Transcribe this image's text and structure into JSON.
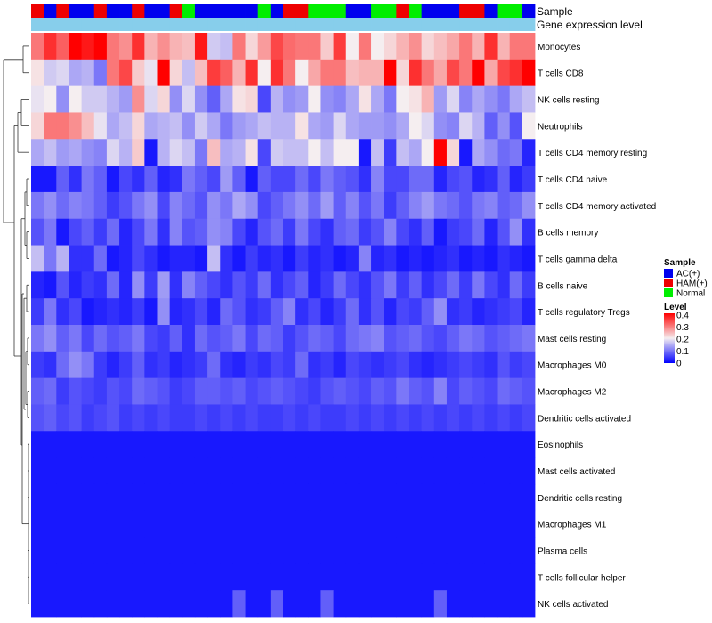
{
  "chart_data": {
    "type": "heatmap",
    "title": "",
    "annotation_labels": [
      "Sample",
      "Gene expression level"
    ],
    "sample_groups": [
      "HAM(+)",
      "AC(+)",
      "HAM(+)",
      "AC(+)",
      "AC(+)",
      "HAM(+)",
      "AC(+)",
      "AC(+)",
      "HAM(+)",
      "AC(+)",
      "AC(+)",
      "HAM(+)",
      "Normal",
      "AC(+)",
      "AC(+)",
      "AC(+)",
      "AC(+)",
      "AC(+)",
      "Normal",
      "AC(+)",
      "HAM(+)",
      "HAM(+)",
      "Normal",
      "Normal",
      "Normal",
      "AC(+)",
      "AC(+)",
      "Normal",
      "Normal",
      "HAM(+)",
      "Normal",
      "AC(+)",
      "AC(+)",
      "AC(+)",
      "HAM(+)",
      "HAM(+)",
      "AC(+)",
      "Normal",
      "Normal",
      "AC(+)"
    ],
    "gene_expression_level": [
      0.2,
      0.2,
      0.2,
      0.2,
      0.2,
      0.2,
      0.2,
      0.2,
      0.2,
      0.2,
      0.2,
      0.2,
      0.2,
      0.2,
      0.2,
      0.2,
      0.2,
      0.2,
      0.2,
      0.2,
      0.2,
      0.2,
      0.2,
      0.2,
      0.2,
      0.2,
      0.2,
      0.2,
      0.2,
      0.2,
      0.2,
      0.2,
      0.2,
      0.2,
      0.2,
      0.2,
      0.2,
      0.2,
      0.2,
      0.2
    ],
    "rows": [
      "Monocytes",
      "T cells CD8",
      "NK cells resting",
      "Neutrophils",
      "T cells CD4 memory resting",
      "T cells CD4 naive",
      "T cells CD4 memory activated",
      "B cells memory",
      "T cells gamma delta",
      "B cells naive",
      "T cells regulatory  Tregs",
      "Mast cells resting",
      "Macrophages M0",
      "Macrophages M2",
      "Dendritic cells activated",
      "Eosinophils",
      "Mast cells activated",
      "Dendritic cells resting",
      "Macrophages M1",
      "Plasma cells",
      "T cells follicular helper",
      "NK cells activated"
    ],
    "values": [
      [
        0.3,
        0.36,
        0.32,
        0.4,
        0.38,
        0.42,
        0.3,
        0.28,
        0.36,
        0.25,
        0.28,
        0.25,
        0.24,
        0.38,
        0.17,
        0.16,
        0.3,
        0.22,
        0.27,
        0.34,
        0.31,
        0.3,
        0.3,
        0.23,
        0.35,
        0.2,
        0.3,
        0.2,
        0.22,
        0.25,
        0.28,
        0.22,
        0.24,
        0.26,
        0.3,
        0.25,
        0.36,
        0.25,
        0.3,
        0.3
      ],
      [
        0.21,
        0.17,
        0.18,
        0.14,
        0.15,
        0.1,
        0.3,
        0.34,
        0.23,
        0.19,
        0.4,
        0.22,
        0.16,
        0.24,
        0.35,
        0.32,
        0.25,
        0.36,
        0.2,
        0.36,
        0.3,
        0.2,
        0.26,
        0.3,
        0.3,
        0.24,
        0.25,
        0.25,
        0.4,
        0.22,
        0.36,
        0.3,
        0.26,
        0.34,
        0.3,
        0.4,
        0.26,
        0.34,
        0.36,
        0.4
      ],
      [
        0.19,
        0.2,
        0.12,
        0.2,
        0.17,
        0.17,
        0.15,
        0.13,
        0.28,
        0.18,
        0.22,
        0.12,
        0.18,
        0.12,
        0.08,
        0.14,
        0.21,
        0.22,
        0.06,
        0.15,
        0.12,
        0.13,
        0.2,
        0.12,
        0.11,
        0.14,
        0.21,
        0.14,
        0.1,
        0.2,
        0.21,
        0.25,
        0.13,
        0.18,
        0.11,
        0.14,
        0.12,
        0.1,
        0.14,
        0.16
      ],
      [
        0.22,
        0.3,
        0.3,
        0.28,
        0.24,
        0.19,
        0.14,
        0.16,
        0.22,
        0.14,
        0.15,
        0.16,
        0.12,
        0.17,
        0.14,
        0.1,
        0.13,
        0.14,
        0.16,
        0.15,
        0.15,
        0.21,
        0.14,
        0.13,
        0.18,
        0.14,
        0.13,
        0.13,
        0.12,
        0.14,
        0.2,
        0.18,
        0.12,
        0.11,
        0.18,
        0.15,
        0.08,
        0.12,
        0.07,
        0.2
      ],
      [
        0.14,
        0.16,
        0.13,
        0.14,
        0.12,
        0.11,
        0.18,
        0.15,
        0.23,
        0.02,
        0.15,
        0.18,
        0.16,
        0.1,
        0.24,
        0.14,
        0.15,
        0.21,
        0.06,
        0.17,
        0.16,
        0.16,
        0.2,
        0.16,
        0.2,
        0.2,
        0.02,
        0.16,
        0.05,
        0.16,
        0.14,
        0.2,
        0.42,
        0.22,
        0.02,
        0.14,
        0.12,
        0.09,
        0.1,
        0.03
      ],
      [
        0.02,
        0.02,
        0.08,
        0.04,
        0.1,
        0.08,
        0.02,
        0.06,
        0.04,
        0.08,
        0.03,
        0.04,
        0.1,
        0.08,
        0.06,
        0.13,
        0.08,
        0.02,
        0.08,
        0.06,
        0.06,
        0.09,
        0.06,
        0.1,
        0.08,
        0.07,
        0.04,
        0.11,
        0.06,
        0.06,
        0.09,
        0.09,
        0.03,
        0.06,
        0.07,
        0.03,
        0.04,
        0.08,
        0.03,
        0.05
      ],
      [
        0.1,
        0.12,
        0.09,
        0.11,
        0.1,
        0.08,
        0.05,
        0.07,
        0.1,
        0.12,
        0.06,
        0.11,
        0.09,
        0.07,
        0.12,
        0.1,
        0.14,
        0.12,
        0.06,
        0.08,
        0.1,
        0.12,
        0.09,
        0.13,
        0.08,
        0.11,
        0.07,
        0.1,
        0.05,
        0.08,
        0.11,
        0.13,
        0.1,
        0.09,
        0.07,
        0.1,
        0.11,
        0.08,
        0.09,
        0.12
      ],
      [
        0.07,
        0.1,
        0.02,
        0.06,
        0.08,
        0.05,
        0.09,
        0.03,
        0.06,
        0.1,
        0.04,
        0.11,
        0.07,
        0.08,
        0.12,
        0.11,
        0.06,
        0.03,
        0.07,
        0.09,
        0.05,
        0.1,
        0.06,
        0.04,
        0.08,
        0.09,
        0.05,
        0.07,
        0.11,
        0.06,
        0.04,
        0.08,
        0.02,
        0.05,
        0.06,
        0.09,
        0.03,
        0.07,
        0.12,
        0.04
      ],
      [
        0.16,
        0.1,
        0.15,
        0.04,
        0.04,
        0.09,
        0.02,
        0.03,
        0.06,
        0.04,
        0.02,
        0.03,
        0.03,
        0.02,
        0.16,
        0.04,
        0.02,
        0.05,
        0.03,
        0.04,
        0.02,
        0.05,
        0.03,
        0.04,
        0.02,
        0.03,
        0.11,
        0.03,
        0.04,
        0.02,
        0.03,
        0.02,
        0.03,
        0.04,
        0.02,
        0.03,
        0.02,
        0.04,
        0.03,
        0.02
      ],
      [
        0.03,
        0.02,
        0.07,
        0.03,
        0.05,
        0.04,
        0.09,
        0.03,
        0.12,
        0.05,
        0.13,
        0.04,
        0.11,
        0.08,
        0.06,
        0.04,
        0.07,
        0.05,
        0.09,
        0.04,
        0.06,
        0.08,
        0.03,
        0.05,
        0.09,
        0.06,
        0.04,
        0.07,
        0.1,
        0.05,
        0.08,
        0.04,
        0.06,
        0.09,
        0.05,
        0.1,
        0.06,
        0.04,
        0.09,
        0.05
      ],
      [
        0.05,
        0.1,
        0.04,
        0.06,
        0.02,
        0.03,
        0.04,
        0.03,
        0.05,
        0.02,
        0.12,
        0.03,
        0.04,
        0.06,
        0.03,
        0.09,
        0.07,
        0.04,
        0.05,
        0.08,
        0.11,
        0.04,
        0.06,
        0.03,
        0.05,
        0.09,
        0.04,
        0.07,
        0.03,
        0.06,
        0.05,
        0.08,
        0.12,
        0.04,
        0.05,
        0.03,
        0.04,
        0.05,
        0.06,
        0.03
      ],
      [
        0.1,
        0.12,
        0.08,
        0.1,
        0.06,
        0.09,
        0.07,
        0.08,
        0.1,
        0.06,
        0.05,
        0.08,
        0.04,
        0.09,
        0.07,
        0.08,
        0.1,
        0.06,
        0.09,
        0.08,
        0.05,
        0.07,
        0.09,
        0.08,
        0.06,
        0.09,
        0.1,
        0.11,
        0.07,
        0.08,
        0.09,
        0.07,
        0.06,
        0.08,
        0.1,
        0.09,
        0.07,
        0.08,
        0.09,
        0.1
      ],
      [
        0.05,
        0.04,
        0.09,
        0.12,
        0.1,
        0.05,
        0.03,
        0.05,
        0.08,
        0.04,
        0.05,
        0.03,
        0.04,
        0.05,
        0.09,
        0.04,
        0.03,
        0.05,
        0.04,
        0.06,
        0.05,
        0.09,
        0.04,
        0.05,
        0.03,
        0.06,
        0.05,
        0.04,
        0.05,
        0.06,
        0.04,
        0.03,
        0.04,
        0.05,
        0.06,
        0.05,
        0.04,
        0.07,
        0.05,
        0.06
      ],
      [
        0.08,
        0.09,
        0.05,
        0.07,
        0.06,
        0.05,
        0.07,
        0.06,
        0.09,
        0.08,
        0.07,
        0.05,
        0.06,
        0.08,
        0.08,
        0.07,
        0.08,
        0.06,
        0.07,
        0.08,
        0.07,
        0.06,
        0.05,
        0.07,
        0.08,
        0.07,
        0.06,
        0.08,
        0.07,
        0.1,
        0.08,
        0.07,
        0.11,
        0.06,
        0.08,
        0.07,
        0.06,
        0.09,
        0.08,
        0.07
      ],
      [
        0.07,
        0.08,
        0.06,
        0.07,
        0.05,
        0.06,
        0.07,
        0.05,
        0.06,
        0.05,
        0.06,
        0.05,
        0.05,
        0.06,
        0.05,
        0.06,
        0.05,
        0.06,
        0.05,
        0.05,
        0.06,
        0.05,
        0.06,
        0.05,
        0.05,
        0.06,
        0.05,
        0.06,
        0.05,
        0.06,
        0.05,
        0.06,
        0.05,
        0.06,
        0.05,
        0.06,
        0.05,
        0.06,
        0.05,
        0.06
      ],
      [
        0.02,
        0.02,
        0.02,
        0.02,
        0.02,
        0.02,
        0.02,
        0.02,
        0.02,
        0.02,
        0.02,
        0.02,
        0.02,
        0.02,
        0.02,
        0.02,
        0.02,
        0.02,
        0.02,
        0.02,
        0.02,
        0.02,
        0.02,
        0.02,
        0.02,
        0.02,
        0.02,
        0.02,
        0.02,
        0.02,
        0.02,
        0.02,
        0.02,
        0.02,
        0.02,
        0.02,
        0.02,
        0.02,
        0.02,
        0.02
      ],
      [
        0.02,
        0.02,
        0.02,
        0.02,
        0.02,
        0.02,
        0.02,
        0.02,
        0.02,
        0.02,
        0.02,
        0.02,
        0.02,
        0.02,
        0.02,
        0.02,
        0.02,
        0.02,
        0.02,
        0.02,
        0.02,
        0.02,
        0.02,
        0.02,
        0.02,
        0.02,
        0.02,
        0.02,
        0.02,
        0.02,
        0.02,
        0.02,
        0.02,
        0.02,
        0.02,
        0.02,
        0.02,
        0.02,
        0.02,
        0.02
      ],
      [
        0.02,
        0.02,
        0.02,
        0.02,
        0.02,
        0.02,
        0.02,
        0.02,
        0.02,
        0.02,
        0.02,
        0.02,
        0.02,
        0.02,
        0.02,
        0.02,
        0.02,
        0.02,
        0.02,
        0.02,
        0.02,
        0.02,
        0.02,
        0.02,
        0.02,
        0.02,
        0.02,
        0.02,
        0.02,
        0.02,
        0.02,
        0.02,
        0.02,
        0.02,
        0.02,
        0.02,
        0.02,
        0.02,
        0.02,
        0.02
      ],
      [
        0.02,
        0.02,
        0.02,
        0.02,
        0.02,
        0.02,
        0.02,
        0.02,
        0.02,
        0.02,
        0.02,
        0.02,
        0.02,
        0.02,
        0.02,
        0.02,
        0.02,
        0.02,
        0.02,
        0.02,
        0.02,
        0.02,
        0.02,
        0.02,
        0.02,
        0.02,
        0.02,
        0.02,
        0.02,
        0.02,
        0.02,
        0.02,
        0.02,
        0.02,
        0.02,
        0.02,
        0.02,
        0.02,
        0.02,
        0.02
      ],
      [
        0.02,
        0.02,
        0.02,
        0.02,
        0.02,
        0.02,
        0.02,
        0.02,
        0.02,
        0.02,
        0.02,
        0.02,
        0.02,
        0.02,
        0.02,
        0.02,
        0.02,
        0.02,
        0.02,
        0.02,
        0.02,
        0.02,
        0.02,
        0.02,
        0.02,
        0.02,
        0.02,
        0.02,
        0.02,
        0.02,
        0.02,
        0.02,
        0.02,
        0.02,
        0.02,
        0.02,
        0.02,
        0.02,
        0.02,
        0.02
      ],
      [
        0.02,
        0.02,
        0.02,
        0.02,
        0.02,
        0.02,
        0.02,
        0.02,
        0.02,
        0.02,
        0.02,
        0.02,
        0.02,
        0.02,
        0.02,
        0.02,
        0.02,
        0.02,
        0.02,
        0.02,
        0.02,
        0.02,
        0.02,
        0.02,
        0.02,
        0.02,
        0.02,
        0.02,
        0.02,
        0.02,
        0.02,
        0.02,
        0.02,
        0.02,
        0.02,
        0.02,
        0.02,
        0.02,
        0.02,
        0.02
      ],
      [
        0.02,
        0.02,
        0.02,
        0.02,
        0.02,
        0.02,
        0.02,
        0.02,
        0.02,
        0.02,
        0.02,
        0.02,
        0.02,
        0.02,
        0.02,
        0.02,
        0.08,
        0.02,
        0.02,
        0.08,
        0.02,
        0.02,
        0.02,
        0.08,
        0.02,
        0.02,
        0.02,
        0.02,
        0.02,
        0.02,
        0.02,
        0.02,
        0.08,
        0.02,
        0.02,
        0.02,
        0.02,
        0.02,
        0.02,
        0.02
      ]
    ],
    "legend": {
      "sample_title": "Sample",
      "sample_items": [
        {
          "label": "AC(+)",
          "color": "#0000ee"
        },
        {
          "label": "HAM(+)",
          "color": "#ee0000"
        },
        {
          "label": "Normal",
          "color": "#00ee00"
        }
      ],
      "level_title": "Level",
      "level_ticks": [
        0.4,
        0.3,
        0.2,
        0.1,
        0
      ],
      "range": [
        0,
        0.4
      ],
      "colors": {
        "low": "#0000ff",
        "mid": "#f5eef0",
        "high": "#ff0000"
      },
      "annotation_color": "#87ceeb",
      "placement": "right"
    }
  }
}
